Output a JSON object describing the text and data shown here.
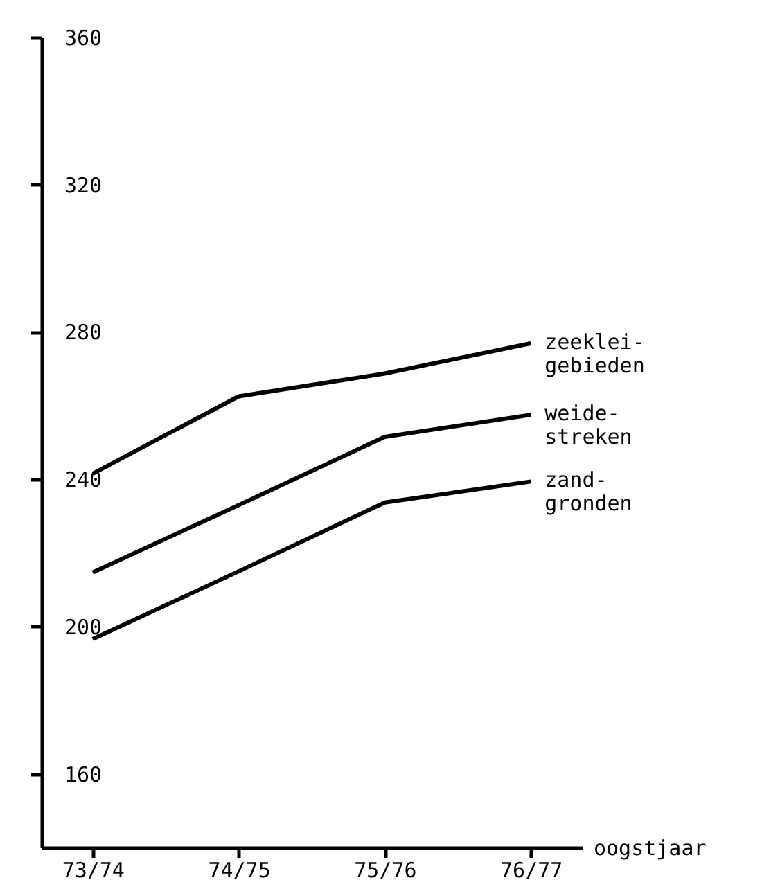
{
  "chart_data": {
    "type": "line",
    "xlabel": "oogstjaar",
    "categories": [
      "73/74",
      "74/75",
      "75/76",
      "76/77"
    ],
    "series": [
      {
        "name": "zeeklei-\ngebieden",
        "color": "#000000",
        "values": [
          241.5,
          262.5,
          268.7,
          276.9
        ]
      },
      {
        "name": "weide-\nstreken",
        "color": "#000000",
        "values": [
          214.7,
          233,
          251.5,
          257.5
        ]
      },
      {
        "name": "zand-\ngronden",
        "color": "#000000",
        "values": [
          196.6,
          215,
          233.7,
          239.4
        ]
      }
    ],
    "ylim": [
      140,
      360
    ],
    "yticks": [
      160,
      200,
      240,
      280,
      320,
      360
    ],
    "grid": false,
    "legend": false,
    "marker": "none",
    "line_style": "solid"
  }
}
